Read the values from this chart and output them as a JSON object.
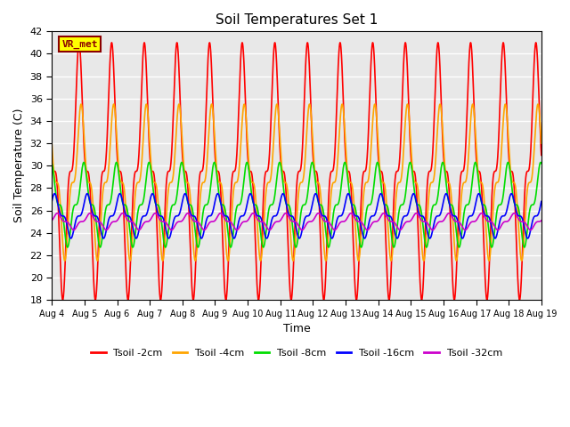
{
  "title": "Soil Temperatures Set 1",
  "xlabel": "Time",
  "ylabel": "Soil Temperature (C)",
  "ylim": [
    18,
    42
  ],
  "yticks": [
    18,
    20,
    22,
    24,
    26,
    28,
    30,
    32,
    34,
    36,
    38,
    40,
    42
  ],
  "start_day": 4,
  "end_day": 19,
  "num_days": 15,
  "pts_per_day": 288,
  "depths": [
    "-2cm",
    "-4cm",
    "-8cm",
    "-16cm",
    "-32cm"
  ],
  "colors": [
    "#ff0000",
    "#ffa500",
    "#00dd00",
    "#0000ff",
    "#cc00cc"
  ],
  "line_widths": [
    1.2,
    1.2,
    1.2,
    1.2,
    1.2
  ],
  "amplitudes": [
    11.5,
    7.0,
    3.8,
    2.0,
    0.75
  ],
  "means": [
    29.5,
    28.5,
    26.5,
    25.5,
    25.0
  ],
  "phase_lags_hours": [
    0.0,
    1.5,
    3.5,
    6.0,
    8.0
  ],
  "peak_hour": 14.0,
  "sharpness": 3,
  "label_text": "VR_met",
  "label_bg": "#ffff00",
  "label_border": "#8b0000",
  "background_color": "#e8e8e8",
  "figure_color": "#ffffff",
  "grid_color": "#ffffff"
}
